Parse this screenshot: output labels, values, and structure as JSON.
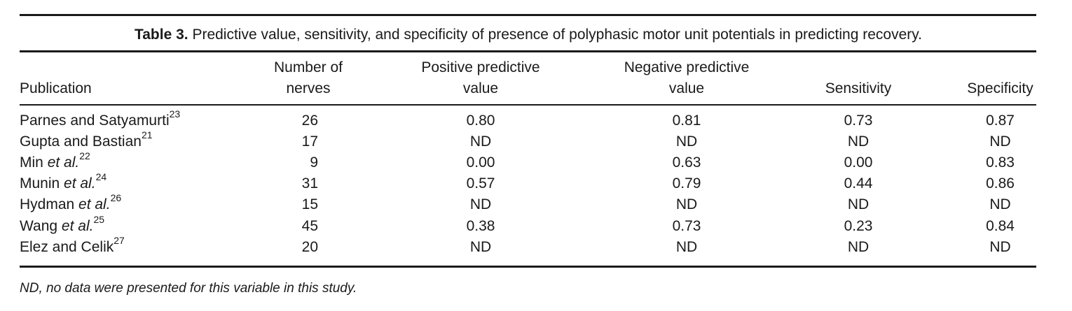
{
  "table": {
    "caption_label": "Table 3.",
    "caption_text": "Predictive value, sensitivity, and specificity of presence of polyphasic motor unit potentials in predicting recovery.",
    "headers": {
      "publication": "Publication",
      "number_line1": "Number of",
      "number_line2": "nerves",
      "ppv_line1": "Positive predictive",
      "ppv_line2": "value",
      "npv_line1": "Negative predictive",
      "npv_line2": "value",
      "sensitivity": "Sensitivity",
      "specificity": "Specificity"
    },
    "rows": [
      {
        "pub": "Parnes and Satyamurti",
        "italic": "",
        "ref": "23",
        "nerves": "26",
        "ppv": "0.80",
        "npv": "0.81",
        "sens": "0.73",
        "spec": "0.87"
      },
      {
        "pub": "Gupta and Bastian",
        "italic": "",
        "ref": "21",
        "nerves": "17",
        "ppv": "ND",
        "npv": "ND",
        "sens": "ND",
        "spec": "ND"
      },
      {
        "pub": "Min ",
        "italic": "et al.",
        "ref": "22",
        "nerves": "9",
        "ppv": "0.00",
        "npv": "0.63",
        "sens": "0.00",
        "spec": "0.83"
      },
      {
        "pub": "Munin ",
        "italic": "et al.",
        "ref": "24",
        "nerves": "31",
        "ppv": "0.57",
        "npv": "0.79",
        "sens": "0.44",
        "spec": "0.86"
      },
      {
        "pub": "Hydman ",
        "italic": "et al.",
        "ref": "26",
        "nerves": "15",
        "ppv": "ND",
        "npv": "ND",
        "sens": "ND",
        "spec": "ND"
      },
      {
        "pub": "Wang ",
        "italic": "et al.",
        "ref": "25",
        "nerves": "45",
        "ppv": "0.38",
        "npv": "0.73",
        "sens": "0.23",
        "spec": "0.84"
      },
      {
        "pub": "Elez and Celik",
        "italic": "",
        "ref": "27",
        "nerves": "20",
        "ppv": "ND",
        "npv": "ND",
        "sens": "ND",
        "spec": "ND"
      }
    ],
    "footnote": "ND, no data were presented for this variable in this study."
  }
}
